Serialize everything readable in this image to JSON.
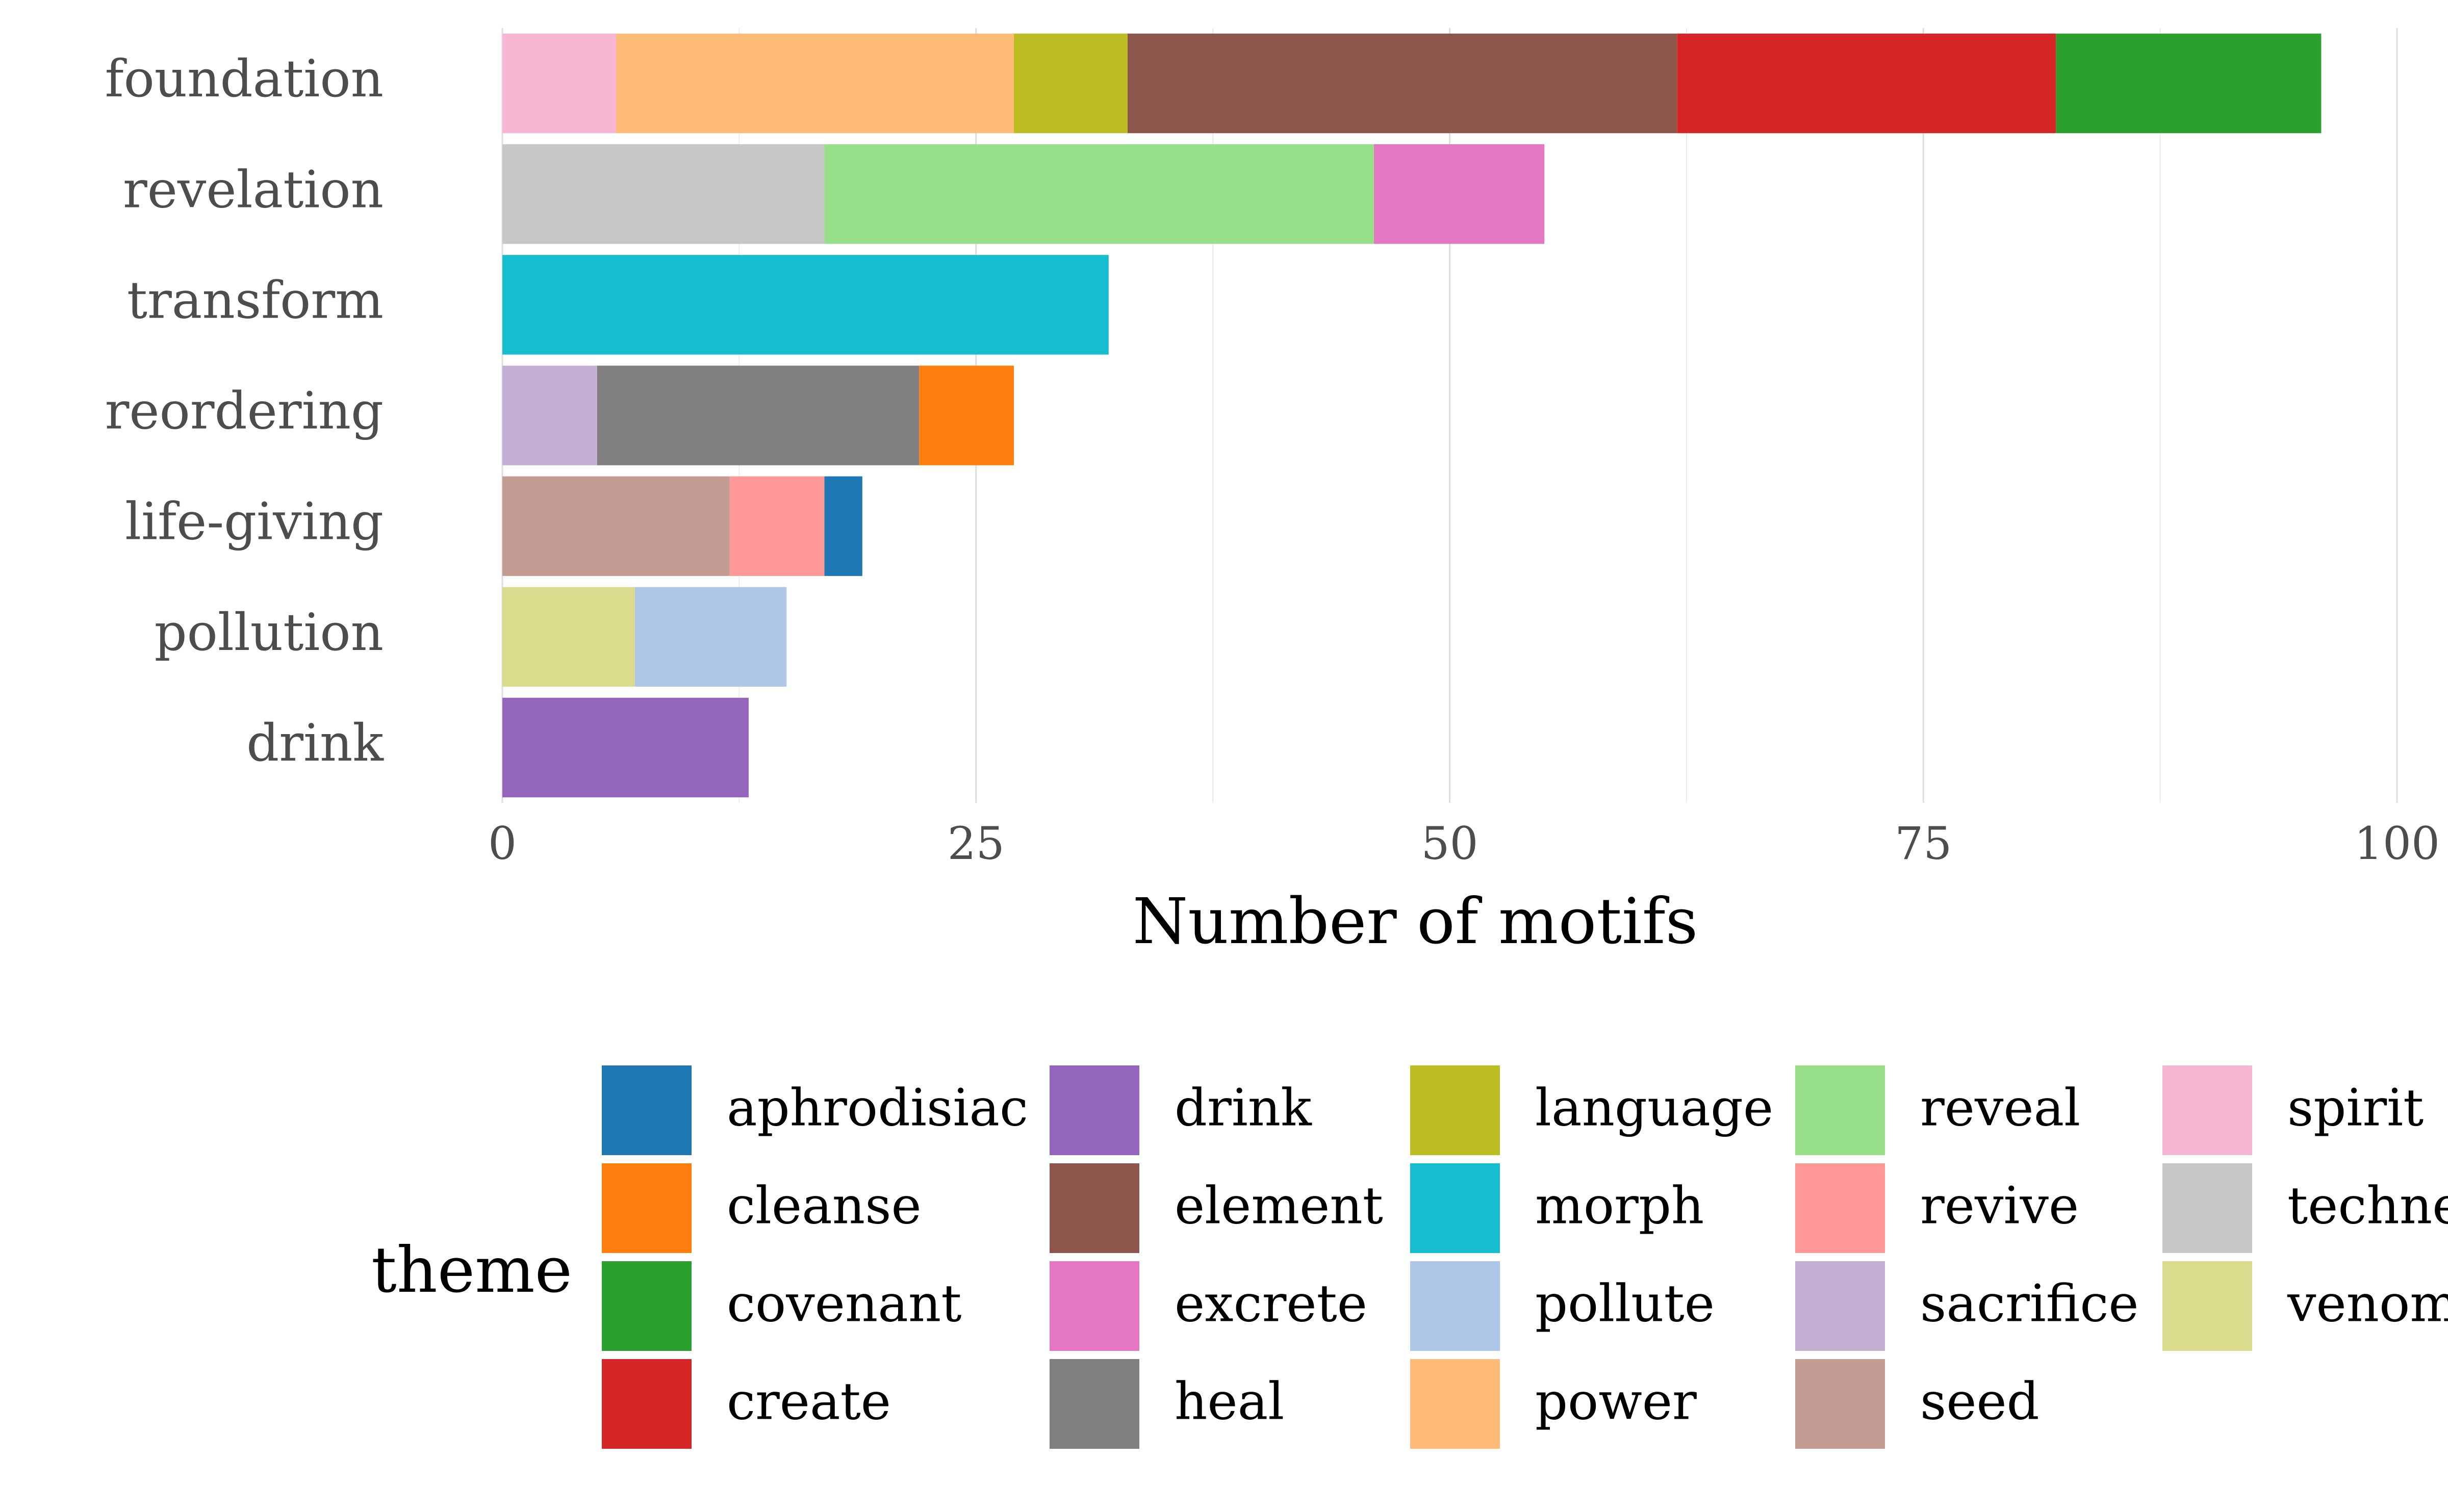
{
  "chart_data": {
    "type": "bar",
    "orientation": "horizontal",
    "stacked": true,
    "categories": [
      "foundation",
      "revelation",
      "transform",
      "reordering",
      "life-giving",
      "pollution",
      "drink"
    ],
    "xlabel": "Number of motifs",
    "xlim": [
      0,
      100
    ],
    "x_ticks": [
      "0",
      "25",
      "50",
      "75",
      "100"
    ],
    "grid": true,
    "legend": {
      "title": "theme",
      "placement": "bottom"
    },
    "theme_order": [
      "aphrodisiac",
      "cleanse",
      "covenant",
      "create",
      "drink",
      "element",
      "excrete",
      "heal",
      "language",
      "morph",
      "pollute",
      "power",
      "reveal",
      "revive",
      "sacrifice",
      "seed",
      "spirit",
      "techne",
      "venom"
    ],
    "colors": {
      "aphrodisiac": "#1f77b4",
      "cleanse": "#ff7f0e",
      "covenant": "#2ca02c",
      "create": "#d62728",
      "drink": "#9467bd",
      "element": "#8c564b",
      "excrete": "#e377c2",
      "heal": "#7f7f7f",
      "language": "#bcbd22",
      "morph": "#17becf",
      "pollute": "#aec7e8",
      "power": "#ffbb78",
      "reveal": "#98df8a",
      "revive": "#ff9896",
      "sacrifice": "#c5b0d5",
      "seed": "#c49c94",
      "spirit": "#f7b6d2",
      "techne": "#c7c7c7",
      "venom": "#dbdb8d"
    },
    "stacks": [
      {
        "category": "foundation",
        "segments": [
          {
            "theme": "spirit",
            "value": 6
          },
          {
            "theme": "power",
            "value": 21
          },
          {
            "theme": "language",
            "value": 6
          },
          {
            "theme": "element",
            "value": 29
          },
          {
            "theme": "create",
            "value": 20
          },
          {
            "theme": "covenant",
            "value": 14
          }
        ]
      },
      {
        "category": "revelation",
        "segments": [
          {
            "theme": "techne",
            "value": 17
          },
          {
            "theme": "reveal",
            "value": 29
          },
          {
            "theme": "excrete",
            "value": 9
          }
        ]
      },
      {
        "category": "transform",
        "segments": [
          {
            "theme": "morph",
            "value": 32
          }
        ]
      },
      {
        "category": "reordering",
        "segments": [
          {
            "theme": "sacrifice",
            "value": 5
          },
          {
            "theme": "heal",
            "value": 17
          },
          {
            "theme": "cleanse",
            "value": 5
          }
        ]
      },
      {
        "category": "life-giving",
        "segments": [
          {
            "theme": "seed",
            "value": 12
          },
          {
            "theme": "revive",
            "value": 5
          },
          {
            "theme": "aphrodisiac",
            "value": 2
          }
        ]
      },
      {
        "category": "pollution",
        "segments": [
          {
            "theme": "venom",
            "value": 7
          },
          {
            "theme": "pollute",
            "value": 8
          }
        ]
      },
      {
        "category": "drink",
        "segments": [
          {
            "theme": "drink",
            "value": 13
          }
        ]
      }
    ]
  }
}
